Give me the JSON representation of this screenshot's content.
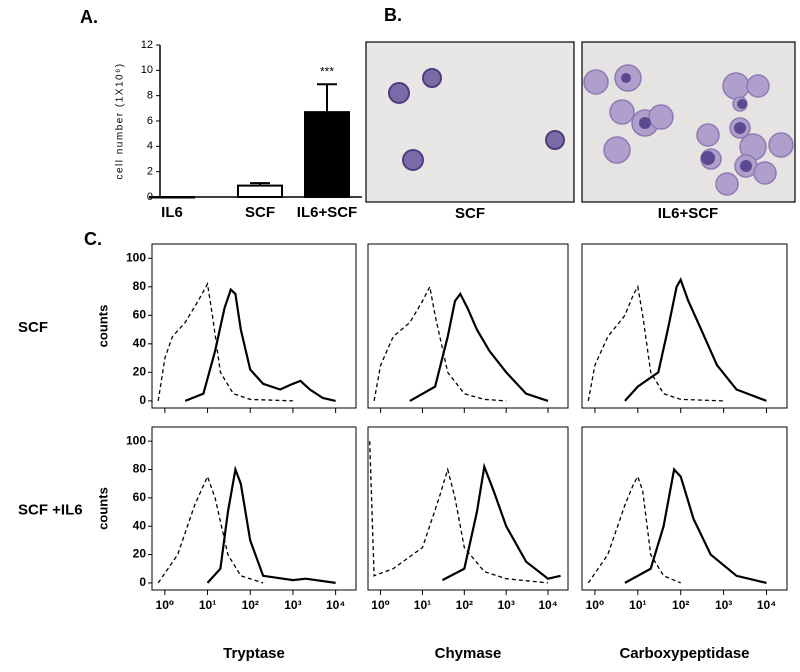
{
  "labels": {
    "a": "A.",
    "b": "B.",
    "c": "C."
  },
  "micrographs": [
    "SCF",
    "IL6+SCF"
  ],
  "chart_data": [
    {
      "type": "bar",
      "ylabel": "cell number (1X10⁶)",
      "categories": [
        "IL6",
        "SCF",
        "IL6+SCF"
      ],
      "values": [
        0,
        0.9,
        6.7
      ],
      "errors": [
        0,
        0.2,
        2.2
      ],
      "colors": [
        "#ffffff",
        "#ffffff",
        "#000000"
      ],
      "annotation": "***",
      "ylim": [
        0,
        12
      ],
      "yticks": [
        0,
        2,
        4,
        6,
        8,
        10,
        12
      ]
    },
    {
      "type": "line",
      "xscale": "log",
      "ylabel": "counts",
      "rows": [
        "SCF",
        "SCF +IL6"
      ],
      "columns": [
        "Tryptase",
        "Chymase",
        "Carboxypeptidase"
      ],
      "xlim": [
        0.5,
        30000
      ],
      "ylim": [
        -5,
        110
      ],
      "yticks": [
        0,
        20,
        40,
        60,
        80,
        100
      ],
      "xticks": [
        {
          "value": 1,
          "label": "10⁰"
        },
        {
          "value": 10,
          "label": "10¹"
        },
        {
          "value": 100,
          "label": "10²"
        },
        {
          "value": 1000,
          "label": "10³"
        },
        {
          "value": 10000,
          "label": "10⁴"
        }
      ],
      "panels": [
        [
          {
            "series": [
              {
                "dash": true,
                "x": [
                  0.7,
                  1,
                  1.5,
                  3,
                  6,
                  10,
                  13,
                  20,
                  40,
                  100,
                  1000
                ],
                "values": [
                  0,
                  30,
                  45,
                  55,
                  70,
                  82,
                  60,
                  20,
                  5,
                  1,
                  0
                ]
              },
              {
                "dash": false,
                "x": [
                  3,
                  8,
                  15,
                  25,
                  35,
                  45,
                  60,
                  100,
                  200,
                  500,
                  1000,
                  1500,
                  2500,
                  5000,
                  10000
                ],
                "values": [
                  0,
                  5,
                  35,
                  65,
                  78,
                  75,
                  50,
                  22,
                  12,
                  8,
                  12,
                  14,
                  8,
                  2,
                  0
                ]
              }
            ]
          },
          {
            "series": [
              {
                "dash": true,
                "x": [
                  0.7,
                  1,
                  2,
                  5,
                  10,
                  15,
                  20,
                  40,
                  100,
                  300,
                  1000
                ],
                "values": [
                  0,
                  25,
                  45,
                  55,
                  70,
                  80,
                  60,
                  20,
                  5,
                  1,
                  0
                ]
              },
              {
                "dash": false,
                "x": [
                  5,
                  20,
                  40,
                  60,
                  80,
                  120,
                  200,
                  400,
                  1000,
                  3000,
                  10000
                ],
                "values": [
                  0,
                  10,
                  45,
                  70,
                  75,
                  65,
                  50,
                  35,
                  20,
                  5,
                  0
                ]
              }
            ]
          },
          {
            "series": [
              {
                "dash": true,
                "x": [
                  0.7,
                  1,
                  2,
                  5,
                  8,
                  10,
                  13,
                  20,
                  40,
                  100,
                  1000
                ],
                "values": [
                  0,
                  25,
                  45,
                  60,
                  75,
                  80,
                  60,
                  20,
                  5,
                  1,
                  0
                ]
              },
              {
                "dash": false,
                "x": [
                  5,
                  10,
                  30,
                  50,
                  80,
                  100,
                  150,
                  300,
                  700,
                  2000,
                  10000
                ],
                "values": [
                  0,
                  10,
                  20,
                  50,
                  80,
                  85,
                  70,
                  50,
                  25,
                  8,
                  0
                ]
              }
            ]
          }
        ],
        [
          {
            "series": [
              {
                "dash": true,
                "x": [
                  0.7,
                  2,
                  5,
                  10,
                  15,
                  30,
                  60,
                  200
                ],
                "values": [
                  0,
                  20,
                  55,
                  75,
                  60,
                  20,
                  5,
                  0
                ]
              },
              {
                "dash": false,
                "x": [
                  10,
                  20,
                  30,
                  45,
                  60,
                  100,
                  200,
                  1000,
                  2000,
                  10000
                ],
                "values": [
                  0,
                  10,
                  50,
                  80,
                  70,
                  30,
                  5,
                  2,
                  3,
                  0
                ]
              }
            ]
          },
          {
            "series": [
              {
                "dash": true,
                "x": [
                  0.55,
                  0.7,
                  2,
                  10,
                  25,
                  40,
                  60,
                  100,
                  300,
                  1000,
                  10000
                ],
                "values": [
                  100,
                  5,
                  10,
                  25,
                  60,
                  80,
                  60,
                  25,
                  8,
                  3,
                  0
                ]
              },
              {
                "dash": false,
                "x": [
                  30,
                  100,
                  200,
                  300,
                  500,
                  1000,
                  3000,
                  10000,
                  20000
                ],
                "values": [
                  2,
                  10,
                  50,
                  82,
                  65,
                  40,
                  15,
                  3,
                  5
                ]
              }
            ]
          },
          {
            "series": [
              {
                "dash": true,
                "x": [
                  0.7,
                  2,
                  5,
                  8,
                  10,
                  13,
                  20,
                  40,
                  100
                ],
                "values": [
                  0,
                  20,
                  55,
                  70,
                  75,
                  65,
                  20,
                  5,
                  0
                ]
              },
              {
                "dash": false,
                "x": [
                  5,
                  20,
                  40,
                  70,
                  100,
                  200,
                  500,
                  2000,
                  10000
                ],
                "values": [
                  0,
                  10,
                  40,
                  80,
                  75,
                  45,
                  20,
                  5,
                  0
                ]
              }
            ]
          }
        ]
      ]
    }
  ]
}
